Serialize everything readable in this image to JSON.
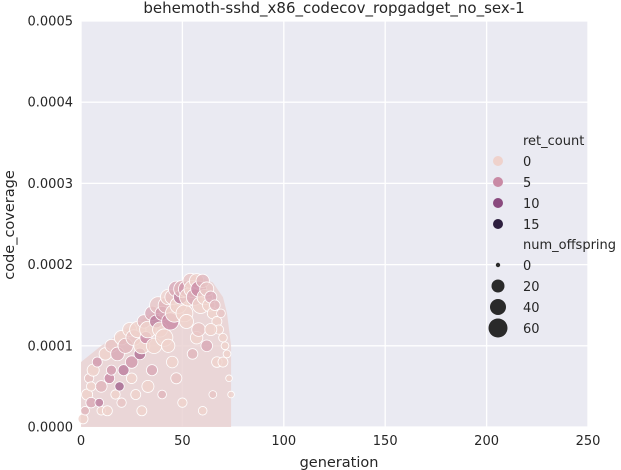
{
  "chart_data": {
    "type": "scatter",
    "title": "behemoth-sshd_x86_codecov_ropgadget_no_sex-1",
    "xlabel": "generation",
    "ylabel": "code_coverage",
    "xlim": [
      0,
      250
    ],
    "ylim": [
      0,
      0.0005
    ],
    "x_ticks": [
      "0",
      "50",
      "100",
      "150",
      "200",
      "250"
    ],
    "y_ticks": [
      "0.0000",
      "0.0001",
      "0.0002",
      "0.0003",
      "0.0004",
      "0.0005"
    ],
    "grid": true,
    "background_color": "#eaeaf2",
    "legend_position": "right",
    "legend": {
      "hue_title": "ret_count",
      "hue_entries": [
        {
          "label": "0",
          "color": "#efd2cc"
        },
        {
          "label": "5",
          "color": "#c98aa5"
        },
        {
          "label": "10",
          "color": "#8a4a7e"
        },
        {
          "label": "15",
          "color": "#2d1e3e"
        }
      ],
      "size_title": "num_offspring",
      "size_entries": [
        {
          "label": "0",
          "value": 0
        },
        {
          "label": "20",
          "value": 20
        },
        {
          "label": "40",
          "value": 40
        },
        {
          "label": "60",
          "value": 60
        }
      ]
    },
    "density_envelope": {
      "x": [
        0,
        5,
        10,
        15,
        20,
        25,
        30,
        35,
        40,
        45,
        50,
        55,
        60,
        65,
        70,
        72,
        74
      ],
      "y_max": [
        8e-05,
        9e-05,
        0.0001,
        0.000108,
        0.000118,
        0.000125,
        0.000132,
        0.00014,
        0.00015,
        0.00016,
        0.000172,
        0.000182,
        0.000183,
        0.000178,
        0.00016,
        0.00014,
        0.0001
      ]
    },
    "series": [
      {
        "points": [
          [
            1,
            1e-05,
            0,
            10
          ],
          [
            2,
            2e-05,
            2,
            6
          ],
          [
            3,
            4e-05,
            0,
            14
          ],
          [
            4,
            6e-05,
            1,
            8
          ],
          [
            5,
            3e-05,
            3,
            12
          ],
          [
            6,
            7e-05,
            0,
            18
          ],
          [
            8,
            8e-05,
            4,
            10
          ],
          [
            10,
            5e-05,
            2,
            16
          ],
          [
            12,
            9e-05,
            0,
            20
          ],
          [
            14,
            6e-05,
            5,
            12
          ],
          [
            15,
            0.0001,
            1,
            22
          ],
          [
            17,
            4e-05,
            0,
            8
          ],
          [
            18,
            9e-05,
            3,
            26
          ],
          [
            20,
            0.00011,
            0,
            30
          ],
          [
            21,
            7e-05,
            6,
            14
          ],
          [
            22,
            0.0001,
            2,
            34
          ],
          [
            24,
            0.00012,
            0,
            28
          ],
          [
            25,
            8e-05,
            4,
            20
          ],
          [
            26,
            0.00011,
            1,
            38
          ],
          [
            28,
            0.00012,
            0,
            42
          ],
          [
            29,
            9e-05,
            7,
            16
          ],
          [
            30,
            0.0001,
            0,
            40
          ],
          [
            31,
            0.00013,
            2,
            24
          ],
          [
            32,
            0.00011,
            5,
            18
          ],
          [
            33,
            0.00012,
            0,
            44
          ],
          [
            35,
            0.00014,
            3,
            30
          ],
          [
            36,
            0.0001,
            0,
            36
          ],
          [
            37,
            0.00013,
            6,
            22
          ],
          [
            38,
            0.00015,
            1,
            46
          ],
          [
            39,
            0.00012,
            0,
            34
          ],
          [
            40,
            0.00014,
            4,
            28
          ],
          [
            41,
            0.00011,
            0,
            50
          ],
          [
            42,
            0.00015,
            2,
            40
          ],
          [
            43,
            0.00016,
            0,
            36
          ],
          [
            44,
            0.00013,
            5,
            48
          ],
          [
            45,
            0.00016,
            1,
            32
          ],
          [
            46,
            0.00014,
            0,
            52
          ],
          [
            47,
            0.00017,
            3,
            38
          ],
          [
            48,
            0.00015,
            0,
            44
          ],
          [
            49,
            0.00016,
            6,
            26
          ],
          [
            50,
            0.00017,
            2,
            50
          ],
          [
            51,
            0.00014,
            0,
            46
          ],
          [
            52,
            0.00017,
            4,
            40
          ],
          [
            53,
            0.00016,
            0,
            54
          ],
          [
            54,
            0.00018,
            1,
            34
          ],
          [
            55,
            0.00017,
            0,
            48
          ],
          [
            56,
            0.00016,
            3,
            42
          ],
          [
            57,
            0.00018,
            0,
            30
          ],
          [
            58,
            0.00017,
            5,
            38
          ],
          [
            59,
            0.00015,
            0,
            44
          ],
          [
            60,
            0.00018,
            2,
            24
          ],
          [
            61,
            0.00016,
            0,
            36
          ],
          [
            62,
            0.00017,
            1,
            28
          ],
          [
            63,
            0.00015,
            0,
            20
          ],
          [
            64,
            0.00016,
            3,
            18
          ],
          [
            65,
            0.00014,
            0,
            14
          ],
          [
            66,
            0.00015,
            2,
            12
          ],
          [
            67,
            0.00013,
            0,
            10
          ],
          [
            68,
            0.00012,
            0,
            8
          ],
          [
            69,
            0.00014,
            1,
            6
          ],
          [
            70,
            0.00011,
            0,
            6
          ],
          [
            71,
            0.0001,
            0,
            4
          ],
          [
            72,
            9e-05,
            0,
            4
          ],
          [
            73,
            6e-05,
            0,
            2
          ],
          [
            74,
            4e-05,
            0,
            2
          ],
          [
            10,
            2e-05,
            0,
            6
          ],
          [
            20,
            3e-05,
            1,
            8
          ],
          [
            30,
            2e-05,
            0,
            10
          ],
          [
            40,
            4e-05,
            2,
            6
          ],
          [
            50,
            3e-05,
            0,
            8
          ],
          [
            60,
            2e-05,
            0,
            6
          ],
          [
            65,
            4e-05,
            1,
            4
          ],
          [
            25,
            6e-05,
            0,
            12
          ],
          [
            35,
            7e-05,
            3,
            14
          ],
          [
            45,
            8e-05,
            0,
            16
          ],
          [
            55,
            9e-05,
            2,
            12
          ],
          [
            15,
            7e-05,
            4,
            10
          ],
          [
            33,
            5e-05,
            0,
            18
          ],
          [
            47,
            6e-05,
            1,
            14
          ],
          [
            57,
            0.00011,
            0,
            20
          ],
          [
            62,
            0.0001,
            3,
            16
          ],
          [
            67,
            8e-05,
            0,
            12
          ],
          [
            5,
            5e-05,
            0,
            8
          ],
          [
            9,
            3e-05,
            6,
            6
          ],
          [
            13,
            2e-05,
            0,
            10
          ],
          [
            19,
            5e-05,
            8,
            8
          ],
          [
            27,
            4e-05,
            0,
            10
          ],
          [
            43,
            0.0001,
            0,
            24
          ],
          [
            52,
            0.00013,
            0,
            28
          ],
          [
            58,
            0.00012,
            1,
            26
          ],
          [
            64,
            0.00012,
            0,
            18
          ],
          [
            70,
            8e-05,
            0,
            10
          ]
        ]
      }
    ]
  }
}
